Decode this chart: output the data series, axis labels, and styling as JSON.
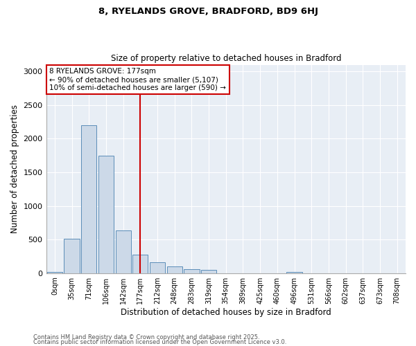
{
  "title1": "8, RYELANDS GROVE, BRADFORD, BD9 6HJ",
  "title2": "Size of property relative to detached houses in Bradford",
  "xlabel": "Distribution of detached houses by size in Bradford",
  "ylabel": "Number of detached properties",
  "categories": [
    "0sqm",
    "35sqm",
    "71sqm",
    "106sqm",
    "142sqm",
    "177sqm",
    "212sqm",
    "248sqm",
    "283sqm",
    "319sqm",
    "354sqm",
    "389sqm",
    "425sqm",
    "460sqm",
    "496sqm",
    "531sqm",
    "566sqm",
    "602sqm",
    "637sqm",
    "673sqm",
    "708sqm"
  ],
  "values": [
    20,
    510,
    2200,
    1750,
    640,
    270,
    160,
    100,
    60,
    50,
    0,
    0,
    0,
    0,
    20,
    0,
    0,
    0,
    0,
    0,
    0
  ],
  "bar_color": "#ccd9e8",
  "bar_edge_color": "#5b8db8",
  "vline_x_index": 5,
  "vline_color": "#cc0000",
  "annotation_text": "8 RYELANDS GROVE: 177sqm\n← 90% of detached houses are smaller (5,107)\n10% of semi-detached houses are larger (590) →",
  "annotation_box_color": "#cc0000",
  "footer1": "Contains HM Land Registry data © Crown copyright and database right 2025.",
  "footer2": "Contains public sector information licensed under the Open Government Licence v3.0.",
  "ylim": [
    0,
    3100
  ],
  "yticks": [
    0,
    500,
    1000,
    1500,
    2000,
    2500,
    3000
  ],
  "plot_bg_color": "#e8eef5"
}
